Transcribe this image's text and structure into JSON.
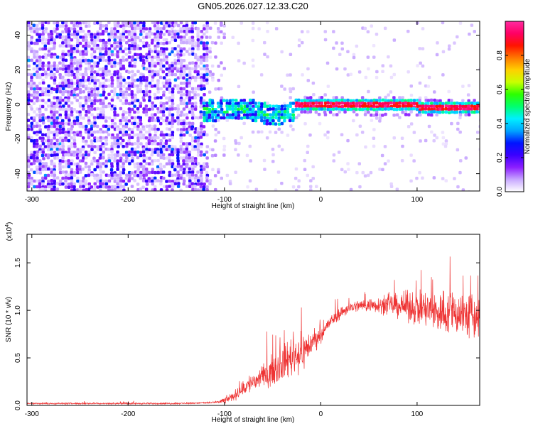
{
  "title": "GN05.2026.027.12.33.C20",
  "chart_data": [
    {
      "type": "heatmap",
      "name": "spectrogram",
      "xlabel": "Height of straight line (km)",
      "ylabel": "Frequency (Hz)",
      "xlim": [
        -305,
        165
      ],
      "ylim": [
        -50,
        48
      ],
      "x_ticks": [
        -300,
        -200,
        -100,
        0,
        100
      ],
      "y_ticks": [
        -40,
        -20,
        0,
        20,
        40
      ],
      "colorbar": {
        "label": "Normalized spectral amplitude",
        "range": [
          0,
          1
        ],
        "ticks": [
          "0.0",
          "0.2",
          "0.4",
          "0.6",
          "0.8"
        ],
        "tick_values": [
          0.0,
          0.2,
          0.4,
          0.6,
          0.8
        ],
        "colors": [
          "#ffffff",
          "#c8a8ff",
          "#8c1fff",
          "#3b00ff",
          "#0014ff",
          "#00a5ff",
          "#00f0ff",
          "#00ff6e",
          "#2cff00",
          "#c8ff00",
          "#ffd000",
          "#ff7800",
          "#ff1400",
          "#ff0064",
          "#ff2aa0"
        ]
      },
      "regions": [
        {
          "x_range": [
            -305,
            -118
          ],
          "freq_range": [
            -50,
            48
          ],
          "amplitude": 0.15,
          "description": "broadband noise"
        },
        {
          "x_range": [
            -118,
            -100
          ],
          "freq_range": [
            -50,
            48
          ],
          "amplitude": 0.05,
          "description": "sparse noise"
        },
        {
          "x_range": [
            -125,
            -30
          ],
          "freq_range": [
            -15,
            10
          ],
          "amplitude": 0.35,
          "description": "emerging signal"
        },
        {
          "x_range": [
            -35,
            165
          ],
          "freq_range": [
            -3,
            3
          ],
          "amplitude": 0.95,
          "description": "strong narrow line near 0 Hz"
        }
      ]
    },
    {
      "type": "line",
      "name": "snr",
      "xlabel": "Height of straight line (km)",
      "ylabel": "SNR (10 * v/v)",
      "y_multiplier": "(x10",
      "y_multiplier_exp": "4",
      "y_multiplier_close": ")",
      "xlim": [
        -305,
        165
      ],
      "ylim": [
        0,
        1.8
      ],
      "x_ticks": [
        -300,
        -200,
        -100,
        0,
        100
      ],
      "y_ticks": [
        0.0,
        0.5,
        1.0,
        1.5
      ],
      "y_tick_labels": [
        "0.0",
        "0.5",
        "1.0",
        "1.5"
      ],
      "color": "#ee3333",
      "series": [
        {
          "name": "SNR",
          "x": [
            -305,
            -250,
            -200,
            -150,
            -110,
            -100,
            -90,
            -75,
            -60,
            -45,
            -30,
            -20,
            -10,
            0,
            10,
            20,
            30,
            40,
            60,
            80,
            100,
            110,
            120,
            140,
            150,
            165
          ],
          "values": [
            0.02,
            0.02,
            0.02,
            0.02,
            0.03,
            0.05,
            0.1,
            0.22,
            0.3,
            0.4,
            0.52,
            0.55,
            0.65,
            0.75,
            0.88,
            0.97,
            1.03,
            1.05,
            1.06,
            1.05,
            1.03,
            1.0,
            0.98,
            0.98,
            0.95,
            0.92
          ],
          "noise": [
            0.01,
            0.01,
            0.01,
            0.01,
            0.01,
            0.04,
            0.06,
            0.12,
            0.15,
            0.2,
            0.25,
            0.25,
            0.16,
            0.1,
            0.08,
            0.08,
            0.07,
            0.08,
            0.1,
            0.15,
            0.22,
            0.25,
            0.28,
            0.3,
            0.32,
            0.3
          ]
        }
      ]
    }
  ]
}
